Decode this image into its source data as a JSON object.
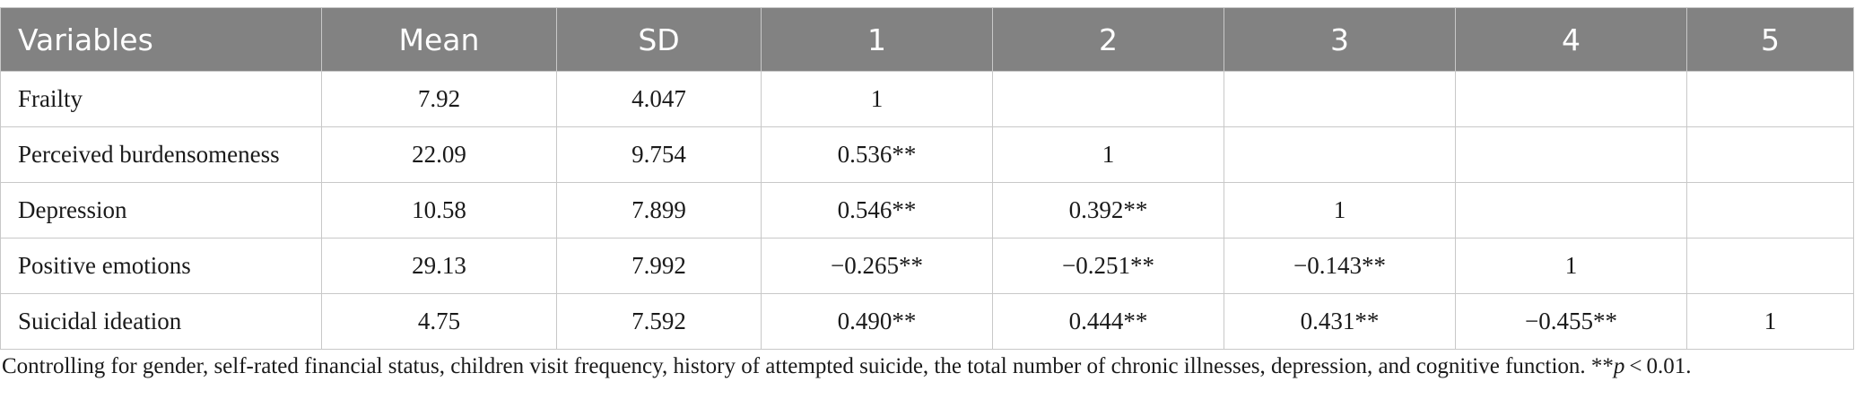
{
  "table": {
    "headers": [
      "Variables",
      "Mean",
      "SD",
      "1",
      "2",
      "3",
      "4",
      "5"
    ],
    "rows": [
      [
        "Frailty",
        "7.92",
        "4.047",
        "1",
        "",
        "",
        "",
        ""
      ],
      [
        "Perceived burdensomeness",
        "22.09",
        "9.754",
        "0.536**",
        "1",
        "",
        "",
        ""
      ],
      [
        "Depression",
        "10.58",
        "7.899",
        "0.546**",
        "0.392**",
        "1",
        "",
        ""
      ],
      [
        "Positive emotions",
        "29.13",
        "7.992",
        "−0.265**",
        "−0.251**",
        "−0.143**",
        "1",
        ""
      ],
      [
        "Suicidal ideation",
        "4.75",
        "7.592",
        "0.490**",
        "0.444**",
        "0.431**",
        "−0.455**",
        "1"
      ]
    ]
  },
  "footnote": {
    "text": "Controlling for gender, self-rated financial status, children visit frequency, history of attempted suicide, the total number of chronic illnesses, depression, and cognitive function. **",
    "p_symbol": "p",
    "threshold": " < 0.01."
  }
}
